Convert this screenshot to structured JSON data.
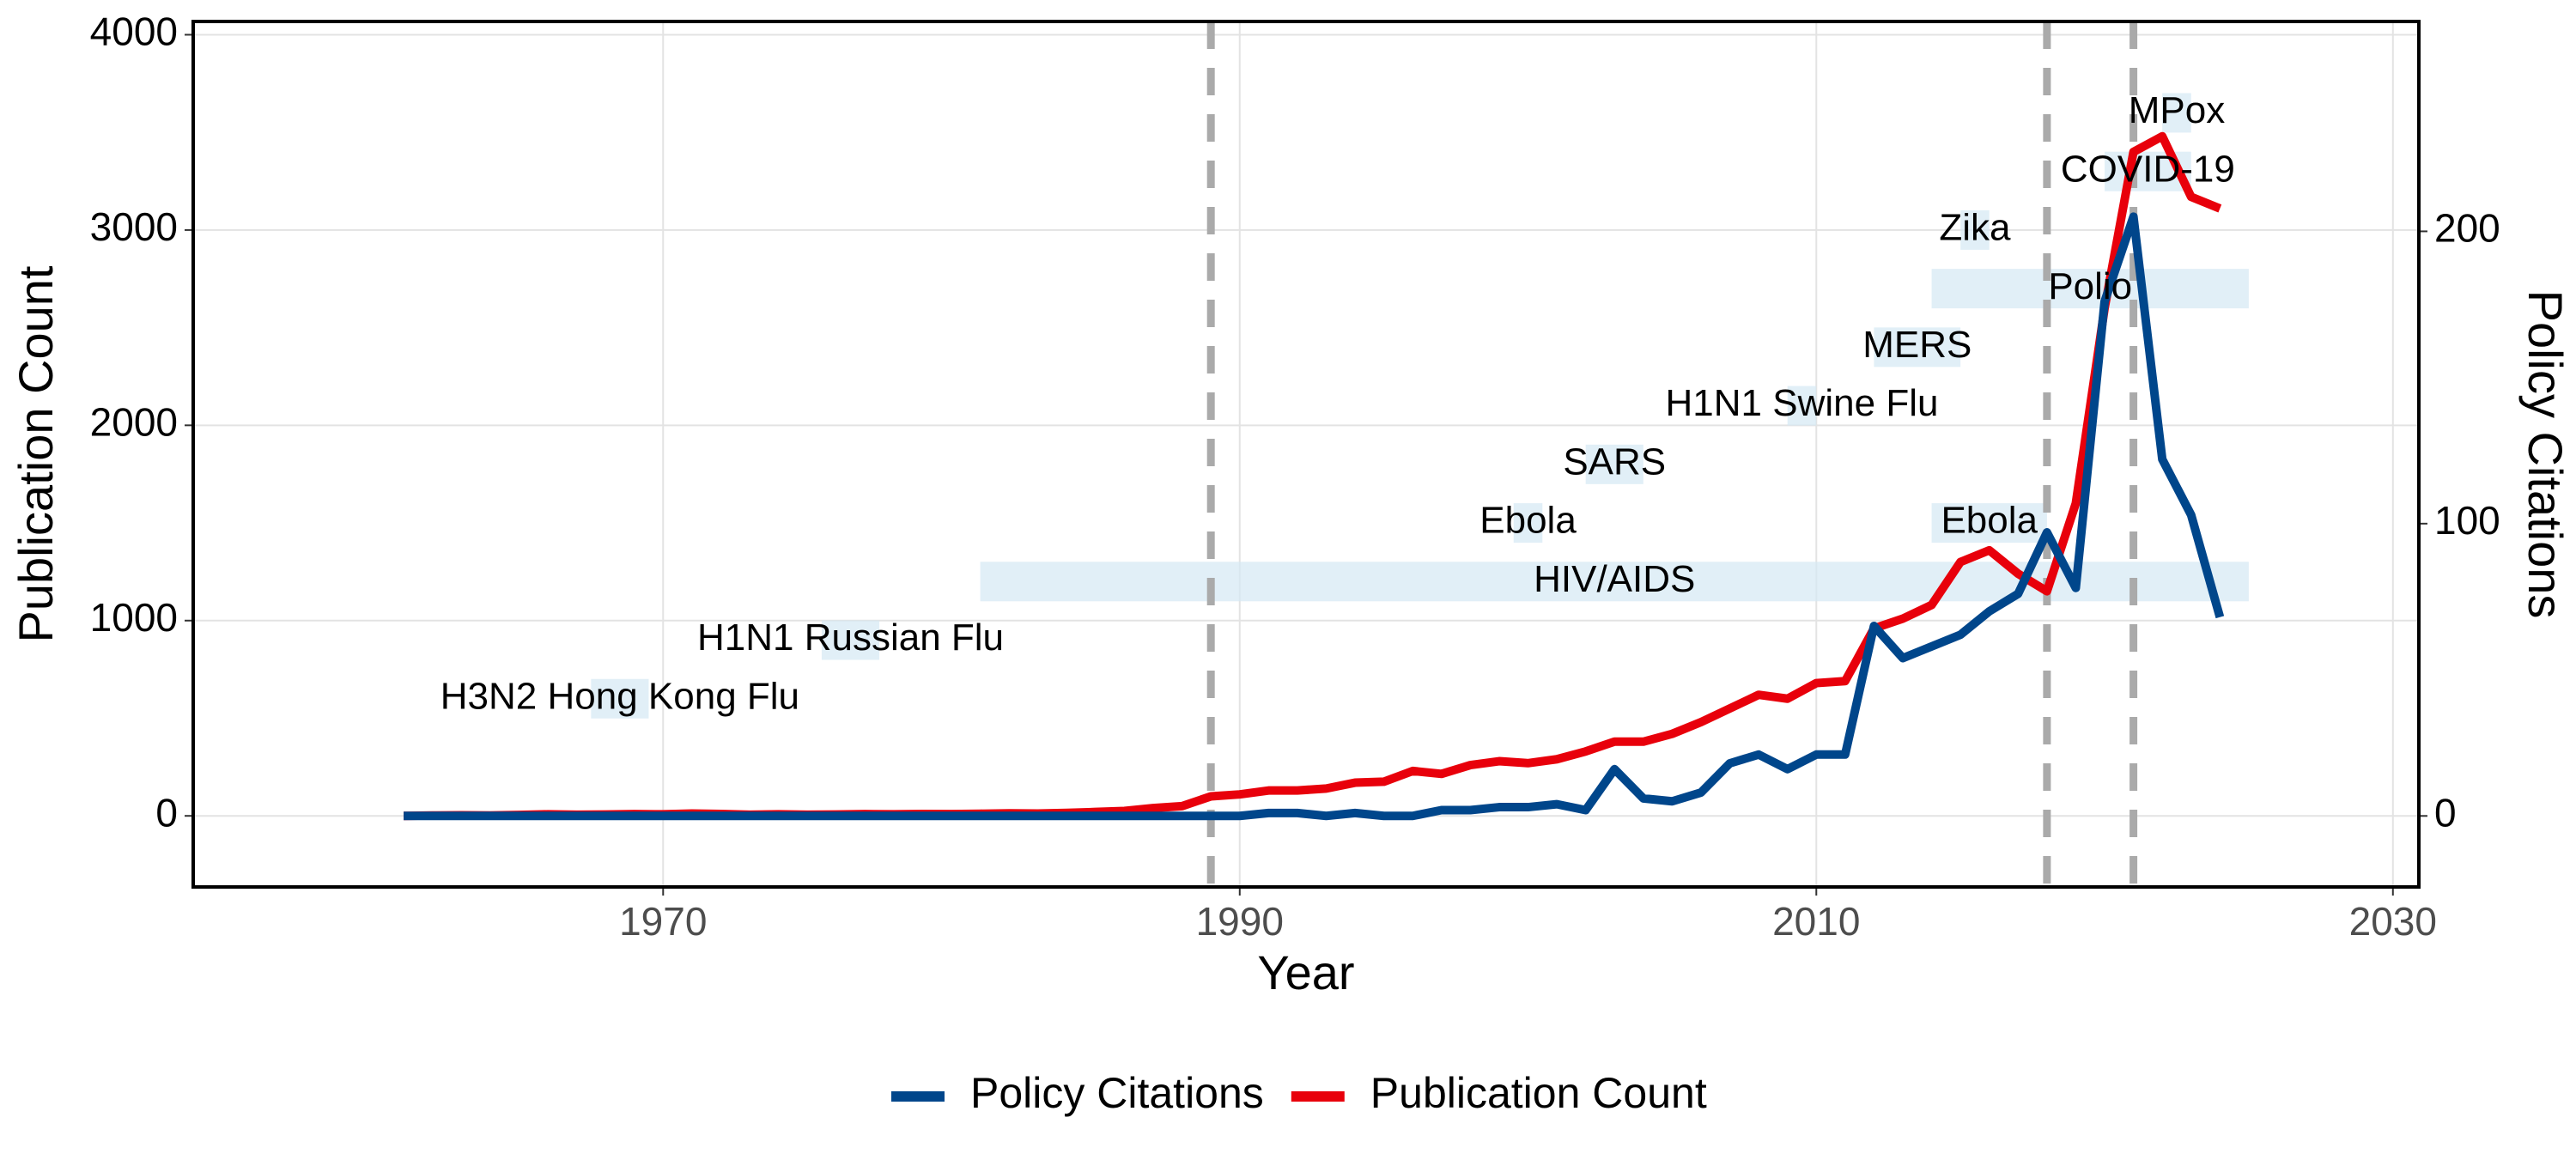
{
  "chart_data": {
    "type": "line",
    "xlabel": "Year",
    "ylabel": "Publication Count",
    "y2label": "Policy Citations",
    "x": [
      1961,
      1962,
      1963,
      1964,
      1965,
      1966,
      1967,
      1968,
      1969,
      1970,
      1971,
      1972,
      1973,
      1974,
      1975,
      1976,
      1977,
      1978,
      1979,
      1980,
      1981,
      1982,
      1983,
      1984,
      1985,
      1986,
      1987,
      1988,
      1989,
      1990,
      1991,
      1992,
      1993,
      1994,
      1995,
      1996,
      1997,
      1998,
      1999,
      2000,
      2001,
      2002,
      2003,
      2004,
      2005,
      2006,
      2007,
      2008,
      2009,
      2010,
      2011,
      2012,
      2013,
      2014,
      2015,
      2016,
      2017,
      2018,
      2019,
      2020,
      2021,
      2022,
      2023,
      2024
    ],
    "series": [
      {
        "name": "Policy Citations",
        "color": "#00468b",
        "axis": "y2",
        "values": [
          0,
          0,
          0,
          0,
          0,
          0,
          0,
          0,
          0,
          0,
          0,
          0,
          0,
          0,
          0,
          0,
          0,
          0,
          0,
          0,
          0,
          0,
          0,
          0,
          0,
          0,
          0,
          0,
          0,
          0,
          1,
          1,
          0,
          1,
          0,
          0,
          2,
          2,
          3,
          3,
          4,
          2,
          16,
          6,
          5,
          8,
          18,
          21,
          16,
          21,
          21,
          65,
          54,
          58,
          62,
          70,
          76,
          97,
          78,
          176,
          205,
          122,
          103,
          68
        ]
      },
      {
        "name": "Publication Count",
        "color": "#e8000b",
        "axis": "y",
        "values": [
          0,
          2,
          3,
          2,
          5,
          8,
          6,
          7,
          9,
          8,
          12,
          10,
          6,
          8,
          6,
          7,
          9,
          8,
          10,
          9,
          11,
          13,
          12,
          15,
          20,
          25,
          40,
          50,
          100,
          110,
          130,
          130,
          140,
          170,
          175,
          230,
          215,
          260,
          280,
          270,
          290,
          330,
          380,
          380,
          420,
          480,
          550,
          620,
          600,
          680,
          690,
          960,
          1010,
          1080,
          1300,
          1360,
          1240,
          1150,
          1600,
          2600,
          3400,
          3480,
          3170,
          3110
        ]
      }
    ],
    "xlim": [
      1953.7,
      2030.9
    ],
    "xticks": [
      1970,
      1990,
      2010,
      2030
    ],
    "ylim": [
      -364,
      4068
    ],
    "yticks": [
      0,
      1000,
      2000,
      3000,
      4000
    ],
    "y2lim": [
      -24.3,
      271.8
    ],
    "y2ticks": [
      0,
      100,
      200
    ],
    "grid": true,
    "vlines": [
      1989,
      2018,
      2021
    ],
    "vline_color": "#aaaaaa",
    "band_color": "#d4e8f4",
    "annotations": [
      {
        "label": "H3N2 Hong Kong Flu",
        "x": [
          1967.5,
          1969.5
        ],
        "y": 600
      },
      {
        "label": "H1N1 Russian Flu",
        "x": [
          1975.5,
          1977.5
        ],
        "y": 900
      },
      {
        "label": "HIV/AIDS",
        "x": [
          1981,
          2025
        ],
        "y": 1200
      },
      {
        "label": "Ebola",
        "x": [
          1999.5,
          2000.5
        ],
        "y": 1500
      },
      {
        "label": "SARS",
        "x": [
          2002,
          2004
        ],
        "y": 1800
      },
      {
        "label": "H1N1 Swine Flu",
        "x": [
          2009,
          2010
        ],
        "y": 2100
      },
      {
        "label": "MERS",
        "x": [
          2012,
          2015
        ],
        "y": 2400
      },
      {
        "label": "Polio",
        "x": [
          2014,
          2025
        ],
        "y": 2700
      },
      {
        "label": "Ebola",
        "x": [
          2014,
          2018
        ],
        "y": 1500
      },
      {
        "label": "Zika",
        "x": [
          2015,
          2016
        ],
        "y": 3000
      },
      {
        "label": "COVID-19",
        "x": [
          2020,
          2023
        ],
        "y": 3300
      },
      {
        "label": "MPox",
        "x": [
          2022,
          2023
        ],
        "y": 3600
      }
    ],
    "legend": "bottom"
  }
}
